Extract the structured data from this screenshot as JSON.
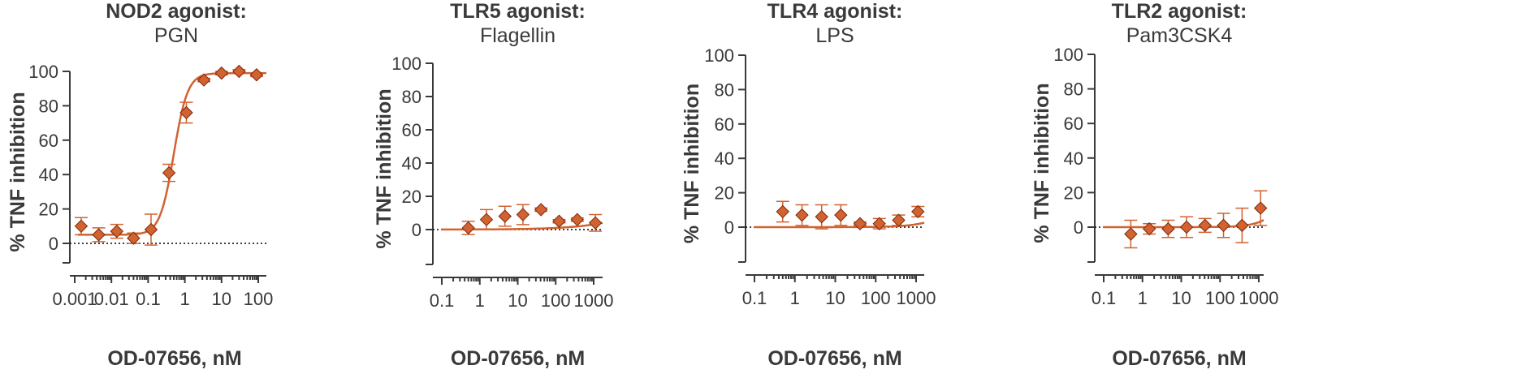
{
  "colors": {
    "series": "#D2622F",
    "axis": "#3a3a3a"
  },
  "chart_data": [
    {
      "type": "scatter",
      "title": "NOD2 agonist:",
      "subtitle": "PGN",
      "xlabel": "OD-07656, nM",
      "ylabel": "% TNF inhibition",
      "xscale": "log",
      "xlim": [
        0.001,
        300
      ],
      "ylim": [
        -10,
        100
      ],
      "xticks": [
        0.001,
        0.01,
        0.1,
        1,
        10,
        100
      ],
      "xtick_labels": [
        "0.001",
        "0.01",
        "0.1",
        "1",
        "10",
        "100"
      ],
      "yticks": [
        0,
        20,
        40,
        60,
        80,
        100
      ],
      "ytick_labels": [
        "0",
        "20",
        "40",
        "60",
        "80",
        "100"
      ],
      "zero_line": true,
      "points": [
        {
          "x": 0.0015,
          "y": 10,
          "err": 5
        },
        {
          "x": 0.0045,
          "y": 5,
          "err": 4
        },
        {
          "x": 0.014,
          "y": 7,
          "err": 4
        },
        {
          "x": 0.04,
          "y": 3,
          "err": 3
        },
        {
          "x": 0.12,
          "y": 8,
          "err": 9
        },
        {
          "x": 0.37,
          "y": 41,
          "err": 5
        },
        {
          "x": 1.1,
          "y": 76,
          "err": 6
        },
        {
          "x": 3.3,
          "y": 95,
          "err": 1
        },
        {
          "x": 10,
          "y": 99,
          "err": 1
        },
        {
          "x": 30,
          "y": 100,
          "err": 1
        },
        {
          "x": 90,
          "y": 98,
          "err": 1
        }
      ],
      "fit": {
        "bottom": 5,
        "top": 99,
        "ec50": 0.5,
        "hill": 2.3
      }
    },
    {
      "type": "scatter",
      "title": "TLR5 agonist:",
      "subtitle": "Flagellin",
      "xlabel": "OD-07656, nM",
      "ylabel": "% TNF inhibition",
      "xscale": "log",
      "xlim": [
        0.1,
        2000
      ],
      "ylim": [
        -20,
        100
      ],
      "xticks": [
        0.1,
        1,
        10,
        100,
        1000
      ],
      "xtick_labels": [
        "0.1",
        "1",
        "10",
        "100",
        "1000"
      ],
      "yticks": [
        0,
        20,
        40,
        60,
        80,
        100
      ],
      "ytick_labels": [
        "0",
        "20",
        "40",
        "60",
        "80",
        "100"
      ],
      "zero_line": true,
      "points": [
        {
          "x": 0.5,
          "y": 1,
          "err": 4
        },
        {
          "x": 1.5,
          "y": 6,
          "err": 6
        },
        {
          "x": 4.6,
          "y": 8,
          "err": 6
        },
        {
          "x": 13.7,
          "y": 9,
          "err": 6
        },
        {
          "x": 41,
          "y": 12,
          "err": 1
        },
        {
          "x": 123,
          "y": 5,
          "err": 1
        },
        {
          "x": 370,
          "y": 6,
          "err": 1
        },
        {
          "x": 1111,
          "y": 4,
          "err": 5
        }
      ],
      "fit": {
        "bottom": 0,
        "top": 100,
        "ec50": 1000000,
        "hill": 0.5
      }
    },
    {
      "type": "scatter",
      "title": "TLR4 agonist:",
      "subtitle": "LPS",
      "xlabel": "OD-07656, nM",
      "ylabel": "% TNF inhibition",
      "xscale": "log",
      "xlim": [
        0.1,
        2000
      ],
      "ylim": [
        -20,
        100
      ],
      "xticks": [
        0.1,
        1,
        10,
        100,
        1000
      ],
      "xtick_labels": [
        "0.1",
        "1",
        "10",
        "100",
        "1000"
      ],
      "yticks": [
        0,
        20,
        40,
        60,
        80,
        100
      ],
      "ytick_labels": [
        "0",
        "20",
        "40",
        "60",
        "80",
        "100"
      ],
      "zero_line": true,
      "points": [
        {
          "x": 0.5,
          "y": 9,
          "err": 6
        },
        {
          "x": 1.5,
          "y": 7,
          "err": 6
        },
        {
          "x": 4.6,
          "y": 6,
          "err": 7
        },
        {
          "x": 13.7,
          "y": 7,
          "err": 6
        },
        {
          "x": 41,
          "y": 2,
          "err": 1
        },
        {
          "x": 123,
          "y": 2,
          "err": 3
        },
        {
          "x": 370,
          "y": 4,
          "err": 3
        },
        {
          "x": 1111,
          "y": 9,
          "err": 3
        }
      ],
      "fit": {
        "bottom": 0,
        "top": 100,
        "ec50": 60000,
        "hill": 1
      }
    },
    {
      "type": "scatter",
      "title": "TLR2 agonist:",
      "subtitle": "Pam3CSK4",
      "xlabel": "OD-07656, nM",
      "ylabel": "% TNF inhibition",
      "xscale": "log",
      "xlim": [
        0.1,
        2000
      ],
      "ylim": [
        -20,
        100
      ],
      "xticks": [
        0.1,
        1,
        10,
        100,
        1000
      ],
      "xtick_labels": [
        "0.1",
        "1",
        "10",
        "100",
        "1000"
      ],
      "yticks": [
        0,
        20,
        40,
        60,
        80,
        100
      ],
      "ytick_labels": [
        "0",
        "20",
        "40",
        "60",
        "80",
        "100"
      ],
      "zero_line": true,
      "points": [
        {
          "x": 0.5,
          "y": -4,
          "err": 8
        },
        {
          "x": 1.5,
          "y": -1,
          "err": 3
        },
        {
          "x": 4.6,
          "y": -1,
          "err": 5
        },
        {
          "x": 13.7,
          "y": 0,
          "err": 6
        },
        {
          "x": 41,
          "y": 1,
          "err": 4
        },
        {
          "x": 123,
          "y": 1,
          "err": 7
        },
        {
          "x": 370,
          "y": 1,
          "err": 10
        },
        {
          "x": 1111,
          "y": 11,
          "err": 10
        }
      ],
      "fit": {
        "bottom": 0,
        "top": 100,
        "ec50": 15000,
        "hill": 1.3
      }
    }
  ]
}
